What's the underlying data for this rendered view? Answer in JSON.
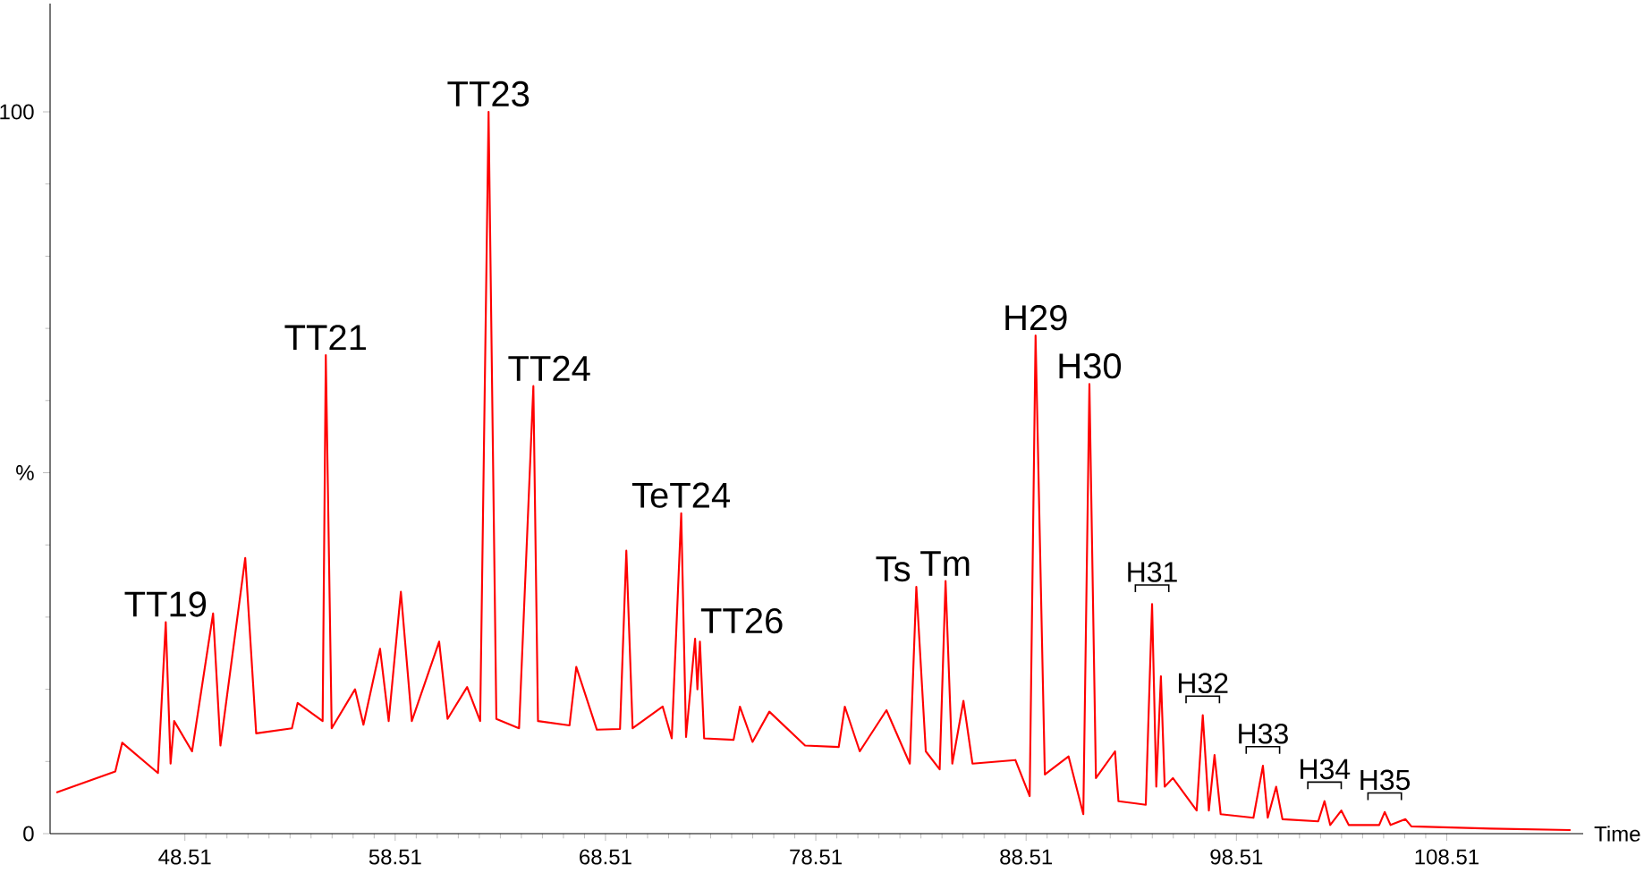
{
  "chart_data": {
    "type": "line",
    "xlabel": "Time",
    "color": "#ff0000",
    "marker": "none",
    "line_style": "solid",
    "grid": false,
    "x": [
      42.4,
      45.2,
      45.53,
      47.23,
      47.6,
      47.83,
      48.0,
      48.85,
      49.85,
      50.2,
      51.38,
      51.9,
      53.6,
      53.87,
      55.06,
      55.21,
      55.49,
      56.6,
      57.0,
      57.79,
      58.2,
      58.78,
      59.3,
      60.6,
      61.0,
      61.93,
      62.55,
      62.95,
      63.32,
      64.4,
      65.08,
      65.3,
      66.8,
      67.12,
      68.1,
      69.2,
      69.5,
      69.8,
      71.23,
      71.66,
      72.11,
      72.34,
      72.77,
      72.88,
      73.0,
      73.2,
      74.6,
      74.9,
      75.5,
      76.3,
      78.0,
      79.6,
      79.89,
      80.6,
      81.87,
      82.98,
      83.29,
      83.74,
      84.4,
      84.68,
      85.0,
      85.53,
      85.96,
      88.0,
      88.68,
      88.96,
      89.4,
      90.53,
      91.23,
      91.52,
      91.83,
      92.74,
      92.9,
      94.2,
      94.5,
      94.7,
      94.92,
      95.1,
      95.49,
      96.62,
      96.91,
      97.2,
      97.47,
      97.76,
      99.32,
      99.77,
      100.0,
      100.4,
      100.7,
      102.4,
      102.7,
      102.97,
      103.5,
      103.85,
      105.3,
      105.56,
      105.84,
      106.55,
      106.83,
      110.6,
      114.4
    ],
    "values": [
      5.7,
      8.6,
      12.6,
      8.4,
      29.3,
      9.7,
      15.6,
      11.4,
      30.5,
      12.2,
      38.2,
      13.9,
      14.6,
      18.1,
      15.6,
      66.3,
      14.6,
      20.0,
      15.1,
      25.6,
      15.6,
      33.5,
      15.6,
      26.6,
      15.9,
      20.3,
      15.6,
      100,
      15.9,
      14.6,
      62.0,
      15.6,
      15.0,
      23.1,
      14.4,
      14.5,
      39.2,
      14.6,
      17.6,
      13.2,
      44.4,
      13.4,
      27.0,
      20.0,
      26.6,
      13.2,
      13.0,
      17.6,
      12.7,
      16.9,
      12.2,
      12.0,
      17.6,
      11.4,
      17.1,
      9.7,
      34.2,
      11.4,
      8.9,
      35.0,
      9.7,
      18.4,
      9.7,
      10.2,
      5.2,
      69.0,
      8.2,
      10.7,
      2.7,
      62.3,
      7.7,
      11.4,
      4.5,
      4.0,
      31.8,
      6.5,
      21.8,
      6.5,
      7.7,
      3.2,
      16.4,
      3.2,
      10.9,
      2.7,
      2.2,
      9.4,
      2.2,
      6.5,
      2.0,
      1.7,
      4.5,
      1.2,
      3.2,
      1.2,
      1.2,
      3.0,
      1.2,
      2.0,
      1.0,
      0.7,
      0.5
    ],
    "xlim": [
      42.1,
      115.0
    ],
    "ylim": [
      0,
      115
    ],
    "xticks": [
      48.51,
      58.51,
      68.51,
      78.51,
      88.51,
      98.51,
      108.51
    ],
    "yticks": [
      0,
      {
        "value": 50,
        "label": "%"
      },
      {
        "value": 100,
        "label": "100"
      }
    ],
    "annotations": [
      {
        "text": "TT19",
        "x": 47.6,
        "y": 29.3
      },
      {
        "text": "TT21",
        "x": 55.21,
        "y": 66.3
      },
      {
        "text": "TT23",
        "x": 62.95,
        "y": 100
      },
      {
        "text": "TT24",
        "x": 65.08,
        "y": 62.0
      },
      {
        "text": "TeT24",
        "x": 72.11,
        "y": 44.4
      },
      {
        "text": "TT26",
        "x": 72.77,
        "y": 27.0
      },
      {
        "text": "Ts",
        "x": 83.29,
        "y": 34.2
      },
      {
        "text": "Tm",
        "x": 84.68,
        "y": 35.0
      },
      {
        "text": "H29",
        "x": 88.96,
        "y": 69.0
      },
      {
        "text": "H30",
        "x": 91.52,
        "y": 62.3
      },
      {
        "text": "H31",
        "x": 94.5,
        "y": 31.8
      },
      {
        "text": "H32",
        "x": 96.91,
        "y": 16.4
      },
      {
        "text": "H33",
        "x": 99.77,
        "y": 9.4
      },
      {
        "text": "H34",
        "x": 102.7,
        "y": 4.5
      },
      {
        "text": "H35",
        "x": 105.56,
        "y": 3.0
      }
    ]
  }
}
